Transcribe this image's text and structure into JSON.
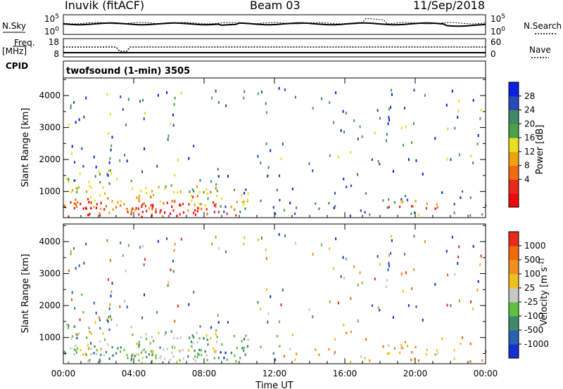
{
  "header": {
    "title": "Inuvik (fitACF)",
    "beam": "Beam 03",
    "date": "11/Sep/2018"
  },
  "side_labels": {
    "nsky": "N.Sky",
    "nsearch": "N.Search",
    "freq": "Freq.",
    "mhz": "[MHz]",
    "cpid": "CPID",
    "nave": "Nave",
    "sky_top": "10^5",
    "sky_bot": "10^0",
    "search_top": "10^5",
    "search_bot": "10^0",
    "freq_top": "18",
    "freq_bot": "8",
    "nave_top": "60",
    "nave_bot": "0"
  },
  "cpid_text": "twofsound (1-min) 3505",
  "chart_data": [
    {
      "type": "heatmap",
      "name": "power",
      "ylabel": "Slant Range [km]",
      "xlabel": "",
      "yticks": [
        1000,
        2000,
        3000,
        4000
      ],
      "ylim": [
        180,
        4550
      ],
      "colorbar_label": "Power [dB]",
      "colorbar_ticks": [
        "28",
        "24",
        "20",
        "16",
        "12",
        "8",
        "4"
      ],
      "colors": [
        "#0a20e0",
        "#2a4ab8",
        "#3f8a6a",
        "#4aa24a",
        "#e8e020",
        "#f0a010",
        "#f06a10",
        "#e82a18",
        "#ee0a0a"
      ]
    },
    {
      "type": "heatmap",
      "name": "velocity",
      "ylabel": "Slant Range [km]",
      "xlabel": "Time UT",
      "yticks": [
        1000,
        2000,
        3000,
        4000
      ],
      "ylim": [
        180,
        4550
      ],
      "xticks": [
        "00:00",
        "04:00",
        "08:00",
        "12:00",
        "16:00",
        "20:00",
        "00:00"
      ],
      "xlim_hours": [
        0,
        24
      ],
      "colorbar_label": "Velocity [m s^-1]",
      "colorbar_ticks": [
        "1000",
        "500",
        "100",
        "25",
        "-25",
        "-100",
        "-500",
        "-1000"
      ],
      "colors": [
        "#1430d0",
        "#2a60b0",
        "#3f8a6a",
        "#60c040",
        "#c8c8c8",
        "#f0c020",
        "#f09020",
        "#f06a10",
        "#e82a18"
      ]
    }
  ]
}
